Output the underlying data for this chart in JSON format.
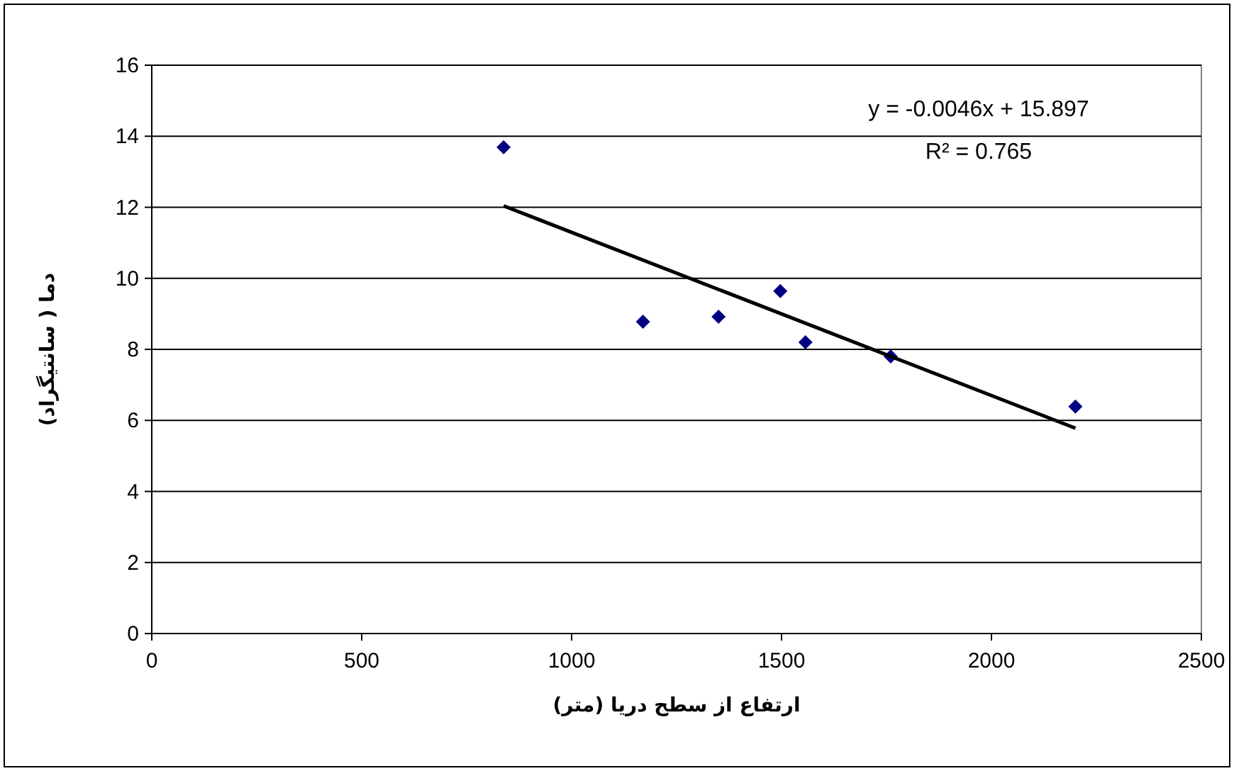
{
  "chart_data": {
    "type": "scatter",
    "xlabel": "ارتفاع از سطح دریا (متر)",
    "ylabel": "دما ( سانتیگراد)",
    "xlim": [
      0,
      2500
    ],
    "xticks": [
      0,
      500,
      1000,
      1500,
      2000,
      2500
    ],
    "ylim": [
      0,
      16
    ],
    "yticks": [
      0,
      2,
      4,
      6,
      8,
      10,
      12,
      14,
      16
    ],
    "grid": "y",
    "marker": "diamond",
    "series": [
      {
        "color": "#000080",
        "x": [
          838,
          1170,
          1350,
          1497,
          1557,
          1760,
          2200
        ],
        "values": [
          13.69,
          8.78,
          8.92,
          9.64,
          8.2,
          7.8,
          6.39
        ]
      },
      {
        "type": "line",
        "color": "#000000",
        "marker": "none",
        "x": [
          838,
          2200
        ],
        "values": [
          12.04,
          5.78
        ]
      }
    ],
    "annotations": [
      "y = -0.0046x + 15.897",
      "R² = 0.765"
    ]
  }
}
